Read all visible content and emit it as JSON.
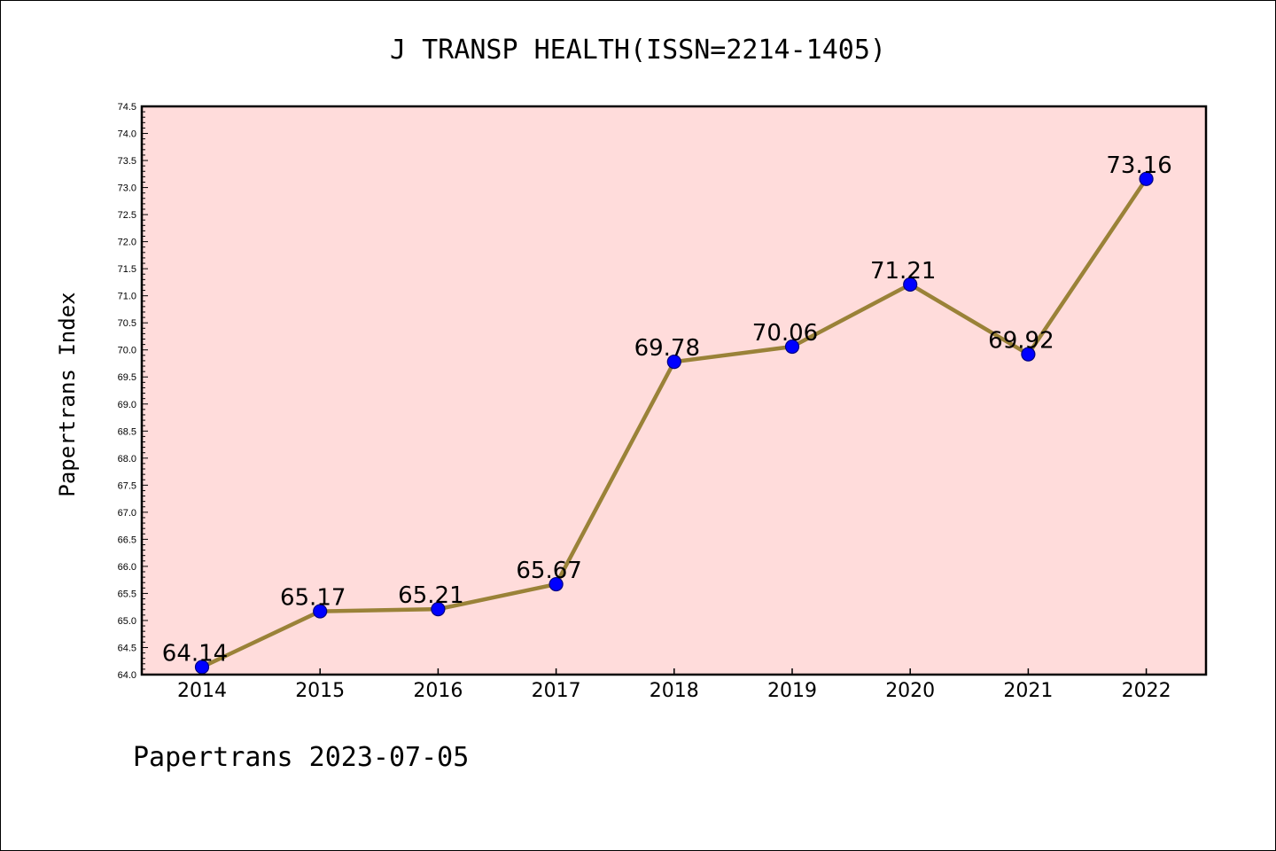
{
  "colors": {
    "plot_background": "#ffdcdb",
    "line": "#9a8238",
    "marker_fill": "#0000ff",
    "marker_edge": "#000080"
  },
  "chart_data": {
    "type": "line",
    "title": "J TRANSP HEALTH(ISSN=2214-1405)",
    "xlabel": "",
    "ylabel": "Papertrans Index",
    "categories": [
      "2014",
      "2015",
      "2016",
      "2017",
      "2018",
      "2019",
      "2020",
      "2021",
      "2022"
    ],
    "values": [
      64.14,
      65.17,
      65.21,
      65.67,
      69.78,
      70.06,
      71.21,
      69.92,
      73.16
    ],
    "data_labels": [
      "64.14",
      "65.17",
      "65.21",
      "65.67",
      "69.78",
      "70.06",
      "71.21",
      "69.92",
      "73.16"
    ],
    "ylim": [
      64.0,
      74.5
    ],
    "ytick_step": 0.5,
    "grid": false,
    "legend": "none"
  },
  "footer": "Papertrans 2023-07-05"
}
